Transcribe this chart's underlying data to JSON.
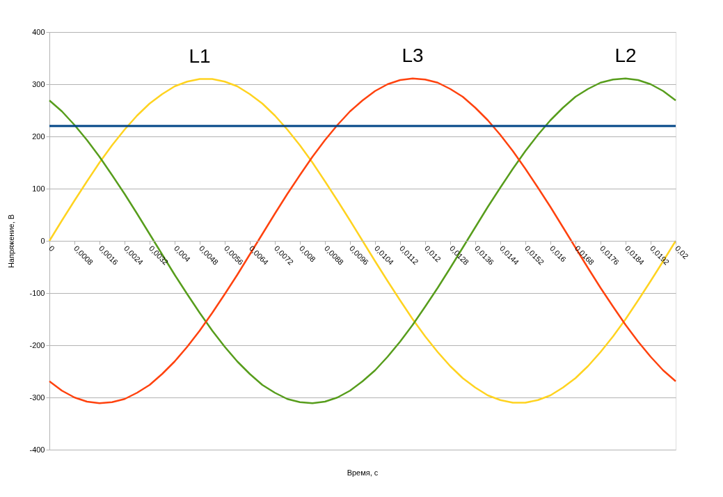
{
  "chart_data": {
    "type": "line",
    "xlabel": "Время, с",
    "ylabel": "Напряжение, В",
    "x": [
      0,
      0.0004,
      0.0008,
      0.0012,
      0.0016,
      0.002,
      0.0024,
      0.0028,
      0.0032,
      0.0036,
      0.004,
      0.0044,
      0.0048,
      0.0052,
      0.0056,
      0.006,
      0.0064,
      0.0068,
      0.0072,
      0.0076,
      0.008,
      0.0084,
      0.0088,
      0.0092,
      0.0096,
      0.01,
      0.0104,
      0.0108,
      0.0112,
      0.0116,
      0.012,
      0.0124,
      0.0128,
      0.0132,
      0.0136,
      0.014,
      0.0144,
      0.0148,
      0.0152,
      0.0156,
      0.016,
      0.0164,
      0.0168,
      0.0172,
      0.0176,
      0.018,
      0.0184,
      0.0188,
      0.0192,
      0.0196,
      0.02
    ],
    "series": [
      {
        "name": "L1",
        "color": "#ffd320",
        "values": [
          0,
          39,
          77,
          114,
          150,
          183,
          213,
          240,
          263,
          281,
          296,
          305,
          310,
          310,
          305,
          296,
          281,
          263,
          240,
          213,
          183,
          150,
          114,
          77,
          39,
          0,
          -39,
          -77,
          -114,
          -150,
          -183,
          -213,
          -240,
          -263,
          -281,
          -296,
          -305,
          -310,
          -310,
          -305,
          -296,
          -281,
          -263,
          -240,
          -213,
          -183,
          -150,
          -114,
          -77,
          -39,
          0
        ]
      },
      {
        "name": "L2",
        "color": "#579d1c",
        "values": [
          269,
          248,
          222,
          193,
          161,
          126,
          90,
          52,
          13,
          -26,
          -65,
          -102,
          -138,
          -172,
          -203,
          -231,
          -255,
          -276,
          -291,
          -303,
          -309,
          -311,
          -308,
          -300,
          -287,
          -269,
          -248,
          -222,
          -193,
          -161,
          -126,
          -90,
          -52,
          -13,
          26,
          65,
          102,
          138,
          172,
          203,
          231,
          255,
          276,
          291,
          303,
          309,
          311,
          308,
          300,
          287,
          269
        ]
      },
      {
        "name": "L3",
        "color": "#ff420e",
        "values": [
          -269,
          -287,
          -300,
          -308,
          -311,
          -309,
          -303,
          -291,
          -276,
          -255,
          -231,
          -203,
          -172,
          -138,
          -102,
          -65,
          -26,
          13,
          52,
          90,
          126,
          161,
          193,
          222,
          248,
          269,
          287,
          300,
          308,
          311,
          309,
          303,
          291,
          276,
          255,
          231,
          203,
          172,
          138,
          102,
          65,
          26,
          -13,
          -52,
          -90,
          -126,
          -161,
          -193,
          -222,
          -248,
          -269
        ]
      }
    ],
    "ref_lines": [
      {
        "axis": "y",
        "value": 220,
        "color": "#004586"
      }
    ],
    "xlim": [
      0,
      0.02
    ],
    "xticks": [
      0,
      {
        "value": 0.0008,
        "label": "0,0008"
      },
      {
        "value": 0.0016,
        "label": "0,0016"
      },
      {
        "value": 0.0024,
        "label": "0,0024"
      },
      {
        "value": 0.0032,
        "label": "0,0032"
      },
      {
        "value": 0.004,
        "label": "0,004"
      },
      {
        "value": 0.0048,
        "label": "0,0048"
      },
      {
        "value": 0.0056,
        "label": "0,0056"
      },
      {
        "value": 0.0064,
        "label": "0,0064"
      },
      {
        "value": 0.0072,
        "label": "0,0072"
      },
      {
        "value": 0.008,
        "label": "0,008"
      },
      {
        "value": 0.0088,
        "label": "0,0088"
      },
      {
        "value": 0.0096,
        "label": "0,0096"
      },
      {
        "value": 0.0104,
        "label": "0,0104"
      },
      {
        "value": 0.0112,
        "label": "0,0112"
      },
      {
        "value": 0.012,
        "label": "0,012"
      },
      {
        "value": 0.0128,
        "label": "0,0128"
      },
      {
        "value": 0.0136,
        "label": "0,0136"
      },
      {
        "value": 0.0144,
        "label": "0,0144"
      },
      {
        "value": 0.0152,
        "label": "0,0152"
      },
      {
        "value": 0.016,
        "label": "0,016"
      },
      {
        "value": 0.0168,
        "label": "0,0168"
      },
      {
        "value": 0.0176,
        "label": "0,0176"
      },
      {
        "value": 0.0184,
        "label": "0,0184"
      },
      {
        "value": 0.0192,
        "label": "0,0192"
      },
      {
        "value": 0.02,
        "label": "0,02"
      }
    ],
    "ylim": [
      -400,
      400
    ],
    "yticks": [
      -400,
      -300,
      -200,
      -100,
      0,
      100,
      200,
      300,
      400
    ],
    "grid": "y",
    "legend": false,
    "marker": "none",
    "line_style": "solid"
  }
}
